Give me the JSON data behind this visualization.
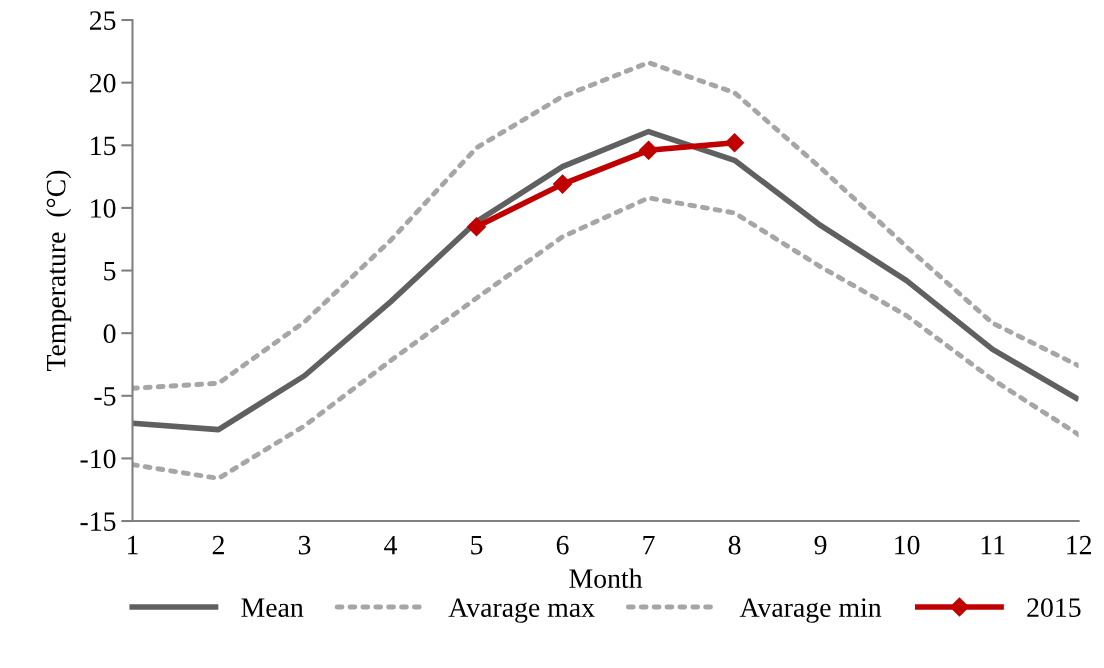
{
  "chart_data": {
    "type": "line",
    "xlabel": "Month",
    "ylabel": "Temperature  (°C)",
    "x": [
      1,
      2,
      3,
      4,
      5,
      6,
      7,
      8,
      9,
      10,
      11,
      12
    ],
    "xlim": [
      1,
      12
    ],
    "xticks": [
      1,
      2,
      3,
      4,
      5,
      6,
      7,
      8,
      9,
      10,
      11,
      12
    ],
    "ylim": [
      -15,
      25
    ],
    "yticks": [
      -15,
      -10,
      -5,
      0,
      5,
      10,
      15,
      20,
      25
    ],
    "grid": false,
    "legend": "bottom",
    "series": [
      {
        "name": "Mean",
        "color": "#606060",
        "line_style": "solid",
        "marker": "none",
        "values": [
          -7.2,
          -7.7,
          -3.4,
          2.5,
          8.9,
          13.3,
          16.1,
          13.8,
          8.6,
          4.2,
          -1.3,
          -5.3
        ]
      },
      {
        "name": "Avarage max",
        "color": "#a6a6a6",
        "line_style": "dotted",
        "marker": "none",
        "values": [
          -4.4,
          -4.0,
          0.9,
          7.4,
          14.8,
          18.9,
          21.6,
          19.2,
          13.2,
          6.9,
          0.8,
          -2.6
        ]
      },
      {
        "name": "Avarage min",
        "color": "#a6a6a6",
        "line_style": "dotted",
        "marker": "none",
        "values": [
          -10.5,
          -11.6,
          -7.4,
          -2.2,
          2.8,
          7.7,
          10.8,
          9.6,
          5.3,
          1.4,
          -3.7,
          -8.1
        ]
      },
      {
        "name": "2015",
        "color": "#c00000",
        "line_style": "solid",
        "marker": "diamond",
        "values": [
          null,
          null,
          null,
          null,
          8.5,
          11.9,
          14.6,
          15.2,
          null,
          null,
          null,
          null
        ]
      }
    ]
  }
}
